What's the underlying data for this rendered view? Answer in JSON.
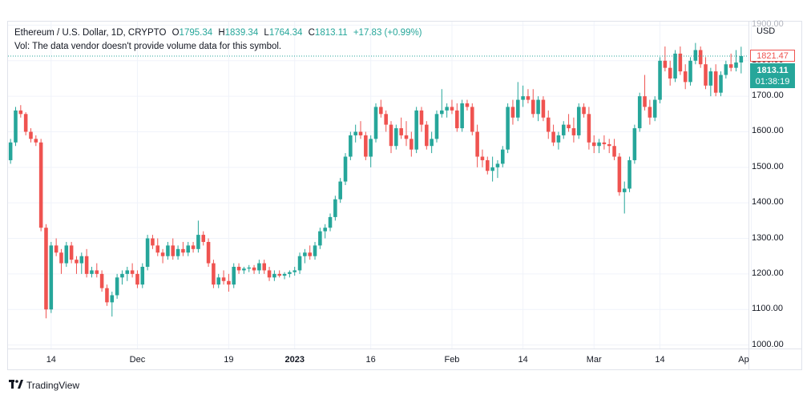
{
  "legend": {
    "symbol": "Ethereum / U.S. Dollar, 1D, CRYPTO",
    "open_label": "O",
    "open": "1795.34",
    "high_label": "H",
    "high": "1839.34",
    "low_label": "L",
    "low": "1764.34",
    "close_label": "C",
    "close": "1813.11",
    "change": "+17.83 (+0.99%)"
  },
  "volume_note": "Vol: The data vendor doesn't provide volume data for this symbol.",
  "currency": "USD",
  "tags": {
    "high_price": "1821.47",
    "last_price": "1813.11",
    "countdown": "01:38:19"
  },
  "brand": {
    "logo": "17",
    "name": "TradingView"
  },
  "colors": {
    "up": "#26a69a",
    "down": "#ef5350",
    "grid": "#f0f3fa",
    "axis": "#e0e3eb"
  },
  "chart_data": {
    "type": "candlestick",
    "title": "Ethereum / U.S. Dollar, 1D, CRYPTO",
    "ylim": [
      990,
      1910
    ],
    "y_ticks": [
      "1900.00",
      "1800.00",
      "1700.00",
      "1600.00",
      "1500.00",
      "1400.00",
      "1300.00",
      "1200.00",
      "1100.00",
      "1000.00"
    ],
    "y_tick_values": [
      1900,
      1800,
      1700,
      1600,
      1500,
      1400,
      1300,
      1200,
      1100,
      1000
    ],
    "x_ticks": [
      {
        "label": "14",
        "index": 8,
        "bold": false
      },
      {
        "label": "Dec",
        "index": 25,
        "bold": false
      },
      {
        "label": "19",
        "index": 43,
        "bold": false
      },
      {
        "label": "2023",
        "index": 56,
        "bold": true
      },
      {
        "label": "16",
        "index": 71,
        "bold": false
      },
      {
        "label": "Feb",
        "index": 87,
        "bold": false
      },
      {
        "label": "14",
        "index": 101,
        "bold": false
      },
      {
        "label": "Mar",
        "index": 115,
        "bold": false
      },
      {
        "label": "14",
        "index": 128,
        "bold": false
      },
      {
        "label": "Ap",
        "index": 146,
        "bold": false
      }
    ],
    "last_price": 1813.11,
    "candles": [
      [
        1520,
        1580,
        1510,
        1570
      ],
      [
        1570,
        1670,
        1560,
        1660
      ],
      [
        1660,
        1675,
        1640,
        1650
      ],
      [
        1650,
        1655,
        1590,
        1600
      ],
      [
        1600,
        1610,
        1570,
        1580
      ],
      [
        1580,
        1590,
        1560,
        1570
      ],
      [
        1570,
        1580,
        1320,
        1330
      ],
      [
        1330,
        1340,
        1075,
        1100
      ],
      [
        1100,
        1290,
        1090,
        1280
      ],
      [
        1280,
        1300,
        1250,
        1260
      ],
      [
        1260,
        1270,
        1200,
        1230
      ],
      [
        1230,
        1290,
        1220,
        1280
      ],
      [
        1280,
        1290,
        1230,
        1240
      ],
      [
        1240,
        1250,
        1200,
        1230
      ],
      [
        1230,
        1260,
        1200,
        1250
      ],
      [
        1250,
        1270,
        1190,
        1200
      ],
      [
        1200,
        1220,
        1190,
        1210
      ],
      [
        1210,
        1230,
        1190,
        1200
      ],
      [
        1200,
        1210,
        1150,
        1160
      ],
      [
        1160,
        1170,
        1110,
        1120
      ],
      [
        1120,
        1150,
        1080,
        1140
      ],
      [
        1140,
        1200,
        1130,
        1190
      ],
      [
        1190,
        1210,
        1170,
        1200
      ],
      [
        1200,
        1220,
        1180,
        1210
      ],
      [
        1210,
        1230,
        1190,
        1200
      ],
      [
        1200,
        1210,
        1160,
        1170
      ],
      [
        1170,
        1230,
        1160,
        1220
      ],
      [
        1220,
        1310,
        1210,
        1300
      ],
      [
        1300,
        1310,
        1270,
        1280
      ],
      [
        1280,
        1300,
        1250,
        1260
      ],
      [
        1260,
        1270,
        1230,
        1250
      ],
      [
        1250,
        1290,
        1240,
        1280
      ],
      [
        1280,
        1300,
        1240,
        1250
      ],
      [
        1250,
        1280,
        1240,
        1270
      ],
      [
        1270,
        1290,
        1250,
        1260
      ],
      [
        1260,
        1290,
        1250,
        1280
      ],
      [
        1280,
        1290,
        1260,
        1270
      ],
      [
        1270,
        1350,
        1260,
        1310
      ],
      [
        1310,
        1320,
        1280,
        1290
      ],
      [
        1290,
        1300,
        1220,
        1230
      ],
      [
        1230,
        1240,
        1160,
        1170
      ],
      [
        1170,
        1200,
        1160,
        1190
      ],
      [
        1190,
        1210,
        1170,
        1180
      ],
      [
        1180,
        1200,
        1150,
        1170
      ],
      [
        1170,
        1230,
        1160,
        1220
      ],
      [
        1220,
        1230,
        1200,
        1210
      ],
      [
        1210,
        1220,
        1200,
        1215
      ],
      [
        1215,
        1225,
        1205,
        1218
      ],
      [
        1218,
        1225,
        1200,
        1210
      ],
      [
        1210,
        1240,
        1200,
        1230
      ],
      [
        1230,
        1240,
        1200,
        1210
      ],
      [
        1210,
        1220,
        1180,
        1190
      ],
      [
        1190,
        1210,
        1180,
        1200
      ],
      [
        1200,
        1210,
        1190,
        1195
      ],
      [
        1195,
        1205,
        1185,
        1200
      ],
      [
        1200,
        1210,
        1190,
        1205
      ],
      [
        1205,
        1220,
        1195,
        1210
      ],
      [
        1210,
        1260,
        1200,
        1250
      ],
      [
        1250,
        1270,
        1230,
        1260
      ],
      [
        1260,
        1280,
        1240,
        1250
      ],
      [
        1250,
        1290,
        1240,
        1280
      ],
      [
        1280,
        1330,
        1270,
        1320
      ],
      [
        1320,
        1340,
        1300,
        1330
      ],
      [
        1330,
        1370,
        1320,
        1360
      ],
      [
        1360,
        1420,
        1350,
        1410
      ],
      [
        1410,
        1470,
        1400,
        1460
      ],
      [
        1460,
        1540,
        1450,
        1530
      ],
      [
        1530,
        1600,
        1520,
        1590
      ],
      [
        1590,
        1620,
        1570,
        1600
      ],
      [
        1600,
        1630,
        1580,
        1590
      ],
      [
        1590,
        1600,
        1520,
        1530
      ],
      [
        1530,
        1590,
        1500,
        1580
      ],
      [
        1580,
        1680,
        1570,
        1670
      ],
      [
        1670,
        1690,
        1640,
        1650
      ],
      [
        1650,
        1660,
        1600,
        1620
      ],
      [
        1620,
        1630,
        1540,
        1560
      ],
      [
        1560,
        1620,
        1550,
        1610
      ],
      [
        1610,
        1640,
        1580,
        1590
      ],
      [
        1590,
        1630,
        1560,
        1580
      ],
      [
        1580,
        1600,
        1530,
        1550
      ],
      [
        1550,
        1670,
        1540,
        1660
      ],
      [
        1660,
        1670,
        1600,
        1620
      ],
      [
        1620,
        1630,
        1550,
        1560
      ],
      [
        1560,
        1600,
        1540,
        1580
      ],
      [
        1580,
        1660,
        1570,
        1650
      ],
      [
        1650,
        1720,
        1640,
        1660
      ],
      [
        1660,
        1680,
        1640,
        1670
      ],
      [
        1670,
        1690,
        1650,
        1660
      ],
      [
        1660,
        1680,
        1600,
        1610
      ],
      [
        1610,
        1690,
        1600,
        1680
      ],
      [
        1680,
        1690,
        1660,
        1670
      ],
      [
        1670,
        1680,
        1590,
        1600
      ],
      [
        1600,
        1620,
        1500,
        1530
      ],
      [
        1530,
        1550,
        1500,
        1520
      ],
      [
        1520,
        1530,
        1480,
        1490
      ],
      [
        1490,
        1530,
        1460,
        1500
      ],
      [
        1500,
        1520,
        1470,
        1510
      ],
      [
        1510,
        1560,
        1500,
        1550
      ],
      [
        1550,
        1680,
        1540,
        1670
      ],
      [
        1670,
        1690,
        1620,
        1640
      ],
      [
        1640,
        1740,
        1630,
        1690
      ],
      [
        1690,
        1730,
        1670,
        1700
      ],
      [
        1700,
        1720,
        1680,
        1690
      ],
      [
        1690,
        1720,
        1640,
        1650
      ],
      [
        1650,
        1700,
        1630,
        1690
      ],
      [
        1690,
        1700,
        1630,
        1640
      ],
      [
        1640,
        1660,
        1580,
        1600
      ],
      [
        1600,
        1620,
        1560,
        1570
      ],
      [
        1570,
        1600,
        1550,
        1590
      ],
      [
        1590,
        1630,
        1580,
        1620
      ],
      [
        1620,
        1650,
        1600,
        1610
      ],
      [
        1610,
        1640,
        1570,
        1590
      ],
      [
        1590,
        1680,
        1580,
        1670
      ],
      [
        1670,
        1680,
        1640,
        1650
      ],
      [
        1650,
        1670,
        1550,
        1570
      ],
      [
        1570,
        1590,
        1540,
        1560
      ],
      [
        1560,
        1580,
        1540,
        1570
      ],
      [
        1570,
        1590,
        1550,
        1565
      ],
      [
        1565,
        1580,
        1540,
        1560
      ],
      [
        1560,
        1580,
        1520,
        1530
      ],
      [
        1530,
        1540,
        1420,
        1430
      ],
      [
        1430,
        1460,
        1370,
        1440
      ],
      [
        1440,
        1530,
        1430,
        1520
      ],
      [
        1520,
        1620,
        1510,
        1610
      ],
      [
        1610,
        1710,
        1600,
        1700
      ],
      [
        1700,
        1760,
        1660,
        1670
      ],
      [
        1670,
        1690,
        1620,
        1640
      ],
      [
        1640,
        1700,
        1630,
        1690
      ],
      [
        1690,
        1810,
        1680,
        1800
      ],
      [
        1800,
        1840,
        1770,
        1780
      ],
      [
        1780,
        1800,
        1730,
        1750
      ],
      [
        1750,
        1830,
        1740,
        1820
      ],
      [
        1820,
        1840,
        1760,
        1770
      ],
      [
        1770,
        1790,
        1720,
        1740
      ],
      [
        1740,
        1810,
        1730,
        1800
      ],
      [
        1800,
        1850,
        1790,
        1830
      ],
      [
        1830,
        1840,
        1780,
        1790
      ],
      [
        1790,
        1810,
        1720,
        1730
      ],
      [
        1730,
        1780,
        1700,
        1770
      ],
      [
        1770,
        1790,
        1700,
        1710
      ],
      [
        1710,
        1770,
        1700,
        1760
      ],
      [
        1760,
        1800,
        1750,
        1790
      ],
      [
        1790,
        1820,
        1770,
        1780
      ],
      [
        1780,
        1830,
        1770,
        1795
      ],
      [
        1795,
        1839.34,
        1764.34,
        1813.11
      ]
    ]
  }
}
